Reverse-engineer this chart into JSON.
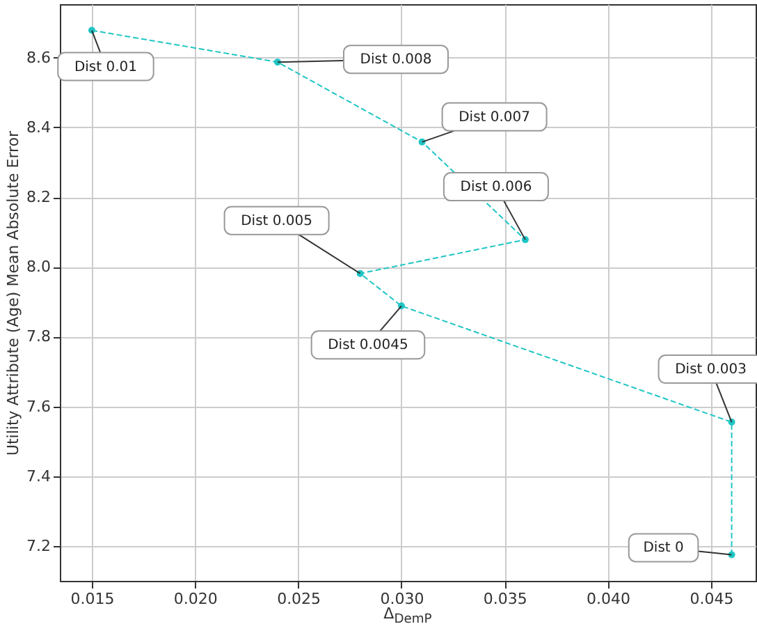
{
  "chart_data": {
    "type": "line",
    "xlabel": "Δ$_{DemP}$",
    "ylabel": "Utility Attribute (Age) Mean Absolute Error",
    "x": [
      0.015,
      0.024,
      0.031,
      0.036,
      0.028,
      0.03,
      0.046,
      0.046
    ],
    "series": [
      {
        "color": "#20c5c5",
        "values": [
          8.678,
          8.587,
          8.358,
          8.078,
          7.981,
          7.888,
          7.555,
          7.175
        ]
      }
    ],
    "annotations": [
      {
        "text": "Dist 0.01",
        "x": 0.015,
        "y": 8.678
      },
      {
        "text": "Dist 0.008",
        "x": 0.024,
        "y": 8.587
      },
      {
        "text": "Dist 0.007",
        "x": 0.031,
        "y": 8.358
      },
      {
        "text": "Dist 0.006",
        "x": 0.036,
        "y": 8.078
      },
      {
        "text": "Dist 0.005",
        "x": 0.028,
        "y": 7.981
      },
      {
        "text": "Dist 0.0045",
        "x": 0.03,
        "y": 7.888
      },
      {
        "text": "Dist 0.003",
        "x": 0.046,
        "y": 7.555
      },
      {
        "text": "Dist 0",
        "x": 0.046,
        "y": 7.175
      }
    ],
    "xlim": [
      0.01345,
      0.04716
    ],
    "ylim": [
      7.1,
      8.753
    ],
    "xticks": [
      {
        "value": 0.015,
        "label": "0.015"
      },
      {
        "value": 0.02,
        "label": "0.020"
      },
      {
        "value": 0.025,
        "label": "0.025"
      },
      {
        "value": 0.03,
        "label": "0.030"
      },
      {
        "value": 0.035,
        "label": "0.035"
      },
      {
        "value": 0.04,
        "label": "0.040"
      },
      {
        "value": 0.045,
        "label": "0.045"
      }
    ],
    "yticks": [
      {
        "value": 7.2,
        "label": "7.2"
      },
      {
        "value": 7.4,
        "label": "7.4"
      },
      {
        "value": 7.6,
        "label": "7.6"
      },
      {
        "value": 7.8,
        "label": "7.8"
      },
      {
        "value": 8.0,
        "label": "8.0"
      },
      {
        "value": 8.2,
        "label": "8.2"
      },
      {
        "value": 8.4,
        "label": "8.4"
      },
      {
        "value": 8.6,
        "label": "8.6"
      }
    ],
    "grid": true,
    "marker": "circle",
    "line_style": "dashed"
  }
}
